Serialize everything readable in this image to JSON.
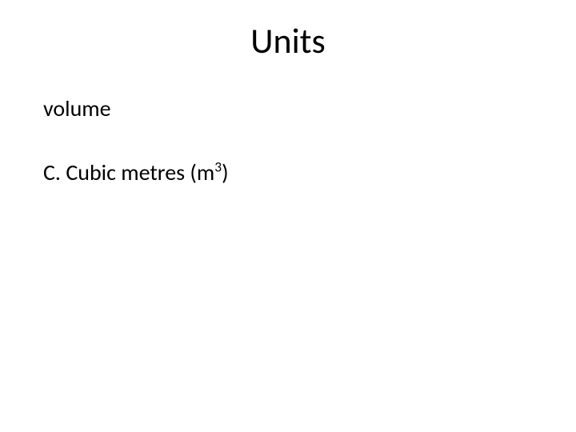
{
  "slide": {
    "title": "Units",
    "line1": "volume",
    "line2_prefix": "C. Cubic metres (m",
    "line2_sup": "3",
    "line2_suffix": ")",
    "background_color": "#ffffff",
    "text_color": "#000000",
    "title_fontsize": 44,
    "body_fontsize": 28,
    "font_family": "Calibri"
  }
}
